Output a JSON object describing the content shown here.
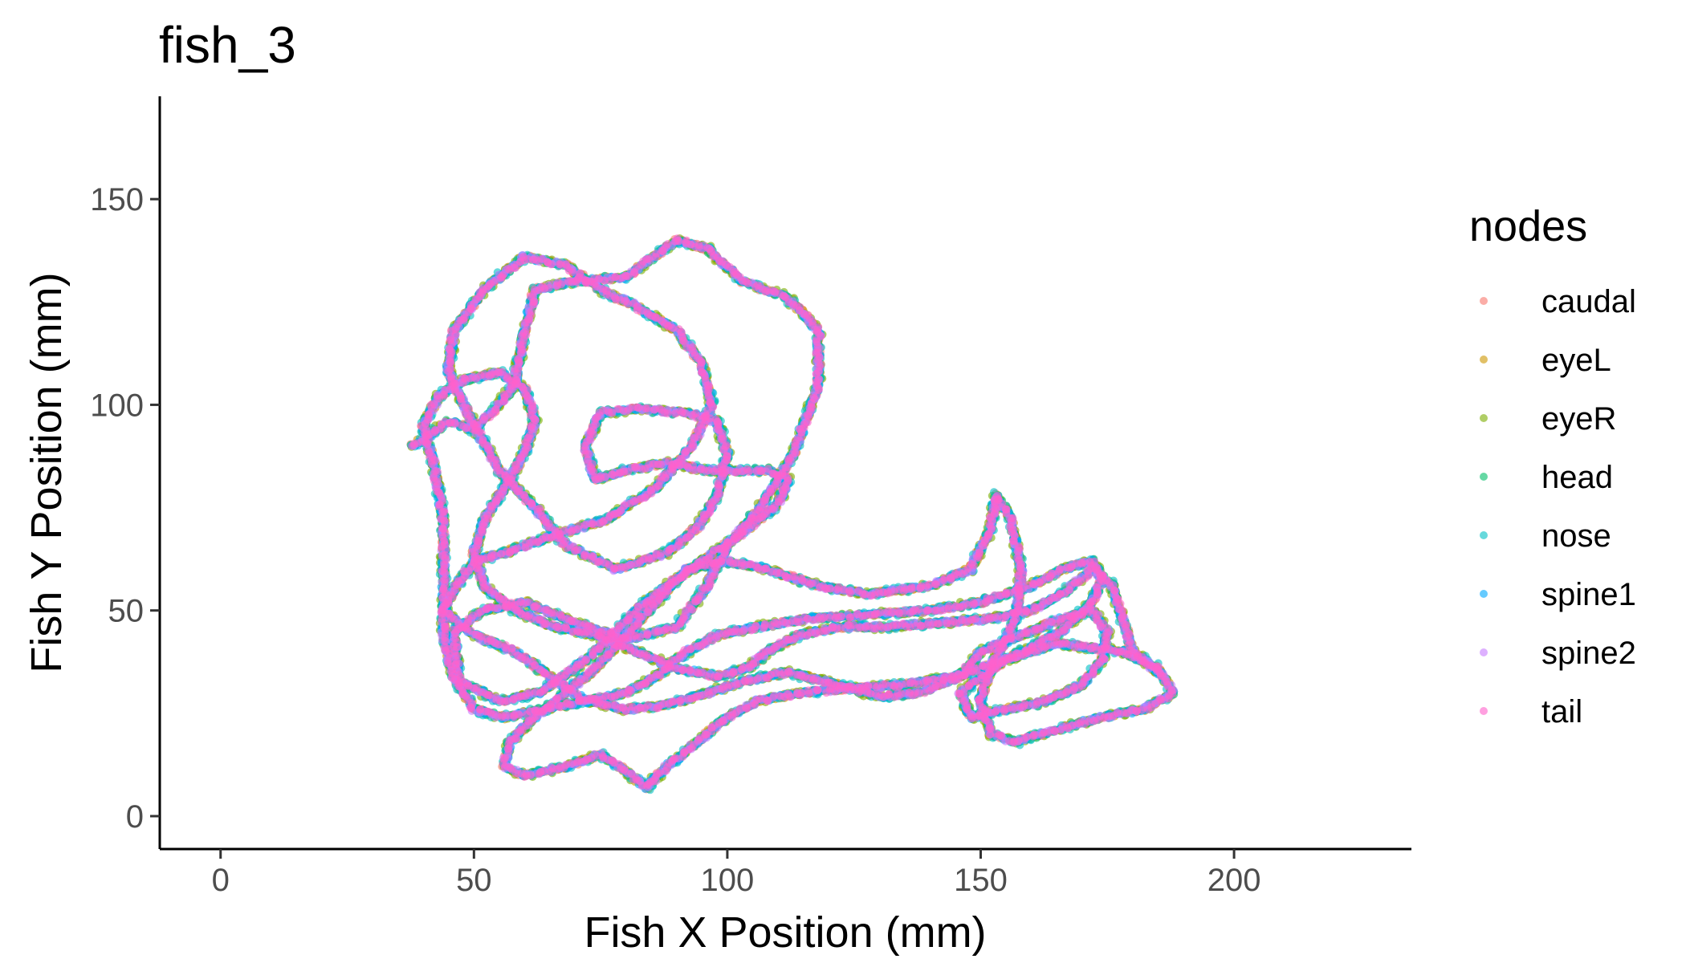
{
  "chart_data": {
    "type": "scatter",
    "title": "fish_3",
    "xlabel": "Fish X Position (mm)",
    "ylabel": "Fish Y Position (mm)",
    "xlim": [
      -12,
      235
    ],
    "ylim": [
      -8,
      175
    ],
    "x_ticks": [
      0,
      50,
      100,
      150,
      200
    ],
    "y_ticks": [
      0,
      50,
      100,
      150
    ],
    "grid": false,
    "legend": {
      "title": "nodes",
      "position": "right"
    },
    "trajectory": [
      [
        38,
        90
      ],
      [
        45,
        96
      ],
      [
        50,
        94
      ],
      [
        55,
        100
      ],
      [
        58,
        105
      ],
      [
        60,
        118
      ],
      [
        62,
        128
      ],
      [
        70,
        130
      ],
      [
        80,
        131
      ],
      [
        90,
        140
      ],
      [
        96,
        138
      ],
      [
        103,
        130
      ],
      [
        112,
        126
      ],
      [
        118,
        118
      ],
      [
        118,
        105
      ],
      [
        113,
        88
      ],
      [
        106,
        74
      ],
      [
        100,
        66
      ],
      [
        96,
        56
      ],
      [
        90,
        46
      ],
      [
        80,
        43
      ],
      [
        70,
        47
      ],
      [
        60,
        52
      ],
      [
        52,
        50
      ],
      [
        46,
        45
      ],
      [
        47,
        33
      ],
      [
        55,
        28
      ],
      [
        63,
        30
      ],
      [
        70,
        36
      ],
      [
        76,
        42
      ],
      [
        82,
        50
      ],
      [
        88,
        56
      ],
      [
        95,
        62
      ],
      [
        102,
        68
      ],
      [
        110,
        76
      ],
      [
        112,
        82
      ],
      [
        108,
        84
      ],
      [
        96,
        84
      ],
      [
        88,
        86
      ],
      [
        80,
        84
      ],
      [
        74,
        82
      ],
      [
        72,
        90
      ],
      [
        75,
        98
      ],
      [
        82,
        99
      ],
      [
        92,
        98
      ],
      [
        98,
        96
      ],
      [
        100,
        88
      ],
      [
        98,
        78
      ],
      [
        94,
        70
      ],
      [
        88,
        64
      ],
      [
        78,
        60
      ],
      [
        68,
        66
      ],
      [
        62,
        75
      ],
      [
        55,
        84
      ],
      [
        50,
        95
      ],
      [
        45,
        108
      ],
      [
        46,
        118
      ],
      [
        52,
        128
      ],
      [
        60,
        136
      ],
      [
        68,
        134
      ],
      [
        75,
        128
      ],
      [
        82,
        124
      ],
      [
        90,
        118
      ],
      [
        95,
        110
      ],
      [
        97,
        100
      ],
      [
        93,
        90
      ],
      [
        86,
        80
      ],
      [
        76,
        72
      ],
      [
        65,
        68
      ],
      [
        56,
        64
      ],
      [
        50,
        62
      ],
      [
        46,
        55
      ],
      [
        44,
        50
      ],
      [
        50,
        44
      ],
      [
        58,
        40
      ],
      [
        65,
        34
      ],
      [
        72,
        28
      ],
      [
        80,
        26
      ],
      [
        88,
        27
      ],
      [
        96,
        30
      ],
      [
        104,
        33
      ],
      [
        112,
        35
      ],
      [
        122,
        32
      ],
      [
        130,
        29
      ],
      [
        138,
        30
      ],
      [
        146,
        34
      ],
      [
        150,
        40
      ],
      [
        158,
        44
      ],
      [
        166,
        48
      ],
      [
        172,
        50
      ],
      [
        175,
        45
      ],
      [
        174,
        38
      ],
      [
        170,
        32
      ],
      [
        163,
        28
      ],
      [
        155,
        26
      ],
      [
        148,
        24
      ],
      [
        146,
        30
      ],
      [
        155,
        38
      ],
      [
        165,
        42
      ],
      [
        178,
        40
      ],
      [
        185,
        36
      ],
      [
        188,
        30
      ],
      [
        182,
        26
      ],
      [
        174,
        24
      ],
      [
        165,
        21
      ],
      [
        157,
        18
      ],
      [
        152,
        20
      ],
      [
        150,
        28
      ],
      [
        152,
        36
      ],
      [
        157,
        48
      ],
      [
        158,
        60
      ],
      [
        156,
        72
      ],
      [
        153,
        78
      ],
      [
        152,
        70
      ],
      [
        148,
        60
      ],
      [
        140,
        56
      ],
      [
        128,
        54
      ],
      [
        118,
        56
      ],
      [
        108,
        60
      ],
      [
        100,
        62
      ],
      [
        92,
        60
      ],
      [
        86,
        52
      ],
      [
        80,
        44
      ],
      [
        74,
        36
      ],
      [
        68,
        30
      ],
      [
        62,
        24
      ],
      [
        57,
        18
      ],
      [
        56,
        12
      ],
      [
        60,
        10
      ],
      [
        68,
        12
      ],
      [
        75,
        15
      ],
      [
        81,
        10
      ],
      [
        84,
        7
      ],
      [
        88,
        12
      ],
      [
        92,
        16
      ],
      [
        96,
        20
      ],
      [
        100,
        24
      ],
      [
        106,
        28
      ],
      [
        115,
        30
      ],
      [
        124,
        31
      ],
      [
        135,
        32
      ],
      [
        145,
        34
      ],
      [
        155,
        38
      ],
      [
        166,
        45
      ],
      [
        172,
        52
      ],
      [
        174,
        58
      ],
      [
        172,
        62
      ],
      [
        166,
        60
      ],
      [
        160,
        56
      ],
      [
        150,
        52
      ],
      [
        140,
        50
      ],
      [
        128,
        49
      ],
      [
        116,
        48
      ],
      [
        106,
        46
      ],
      [
        98,
        44
      ],
      [
        92,
        40
      ],
      [
        86,
        34
      ],
      [
        80,
        30
      ],
      [
        72,
        28
      ],
      [
        64,
        26
      ],
      [
        56,
        24
      ],
      [
        50,
        26
      ],
      [
        46,
        34
      ],
      [
        44,
        44
      ],
      [
        44,
        58
      ],
      [
        44,
        72
      ],
      [
        42,
        86
      ],
      [
        40,
        95
      ],
      [
        43,
        102
      ],
      [
        48,
        106
      ],
      [
        55,
        108
      ],
      [
        60,
        104
      ],
      [
        62,
        96
      ],
      [
        60,
        88
      ],
      [
        56,
        80
      ],
      [
        52,
        72
      ],
      [
        50,
        64
      ],
      [
        52,
        56
      ],
      [
        58,
        50
      ],
      [
        66,
        46
      ],
      [
        74,
        44
      ],
      [
        82,
        40
      ],
      [
        90,
        36
      ],
      [
        98,
        34
      ],
      [
        104,
        36
      ],
      [
        108,
        40
      ],
      [
        114,
        44
      ],
      [
        122,
        46
      ],
      [
        132,
        46
      ],
      [
        142,
        47
      ],
      [
        152,
        48
      ],
      [
        160,
        50
      ],
      [
        166,
        54
      ],
      [
        172,
        60
      ],
      [
        176,
        56
      ],
      [
        178,
        48
      ],
      [
        180,
        40
      ],
      [
        186,
        34
      ]
    ],
    "series": [
      {
        "name": "caudal",
        "color": "#F8766D"
      },
      {
        "name": "eyeL",
        "color": "#CD9600"
      },
      {
        "name": "eyeR",
        "color": "#7CAE00"
      },
      {
        "name": "head",
        "color": "#00BE67"
      },
      {
        "name": "nose",
        "color": "#00BFC4"
      },
      {
        "name": "spine1",
        "color": "#00A9FF"
      },
      {
        "name": "spine2",
        "color": "#C77CFF"
      },
      {
        "name": "tail",
        "color": "#FF61CC"
      }
    ]
  }
}
